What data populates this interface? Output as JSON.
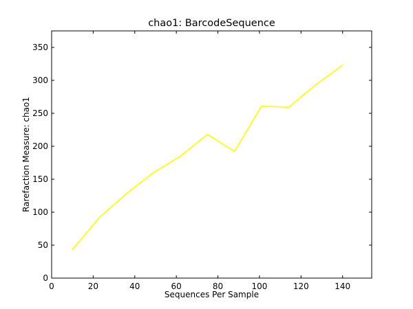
{
  "chart_data": {
    "type": "line",
    "title": "chao1: BarcodeSequence",
    "xlabel": "Sequences Per Sample",
    "ylabel": "Rarefaction Measure: chao1",
    "xlim": [
      0,
      154
    ],
    "ylim": [
      0,
      375
    ],
    "xticks": [
      0,
      20,
      40,
      60,
      80,
      100,
      120,
      140
    ],
    "yticks": [
      0,
      50,
      100,
      150,
      200,
      250,
      300,
      350
    ],
    "grid": false,
    "series": [
      {
        "color": "#ffff00",
        "x": [
          10,
          23,
          36,
          49,
          62,
          75,
          88,
          101,
          114,
          127,
          140
        ],
        "y": [
          43,
          92,
          128,
          160,
          185,
          218,
          192,
          261,
          259,
          293,
          323
        ]
      }
    ]
  }
}
